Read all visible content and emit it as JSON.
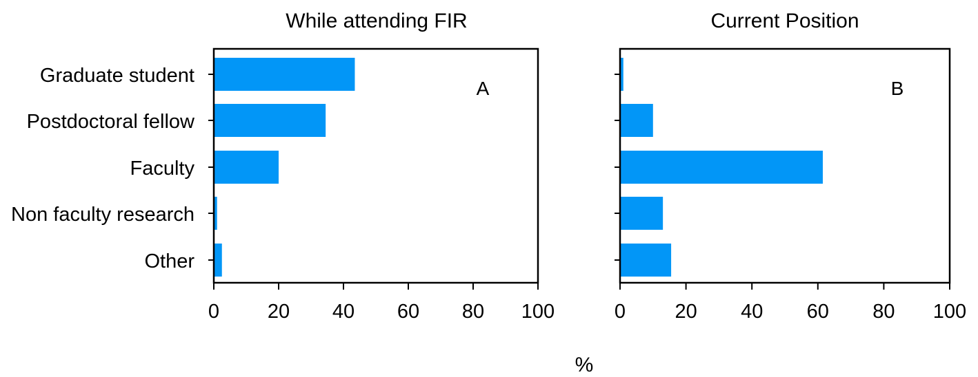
{
  "colors": {
    "bar": "#0296f7"
  },
  "x_unit_label": "%",
  "chart_data": [
    {
      "type": "bar",
      "orientation": "horizontal",
      "title": "While attending FIR",
      "panel_label": "A",
      "categories": [
        "Graduate student",
        "Postdoctoral fellow",
        "Faculty",
        "Non faculty research",
        "Other"
      ],
      "values": [
        43.5,
        34.5,
        20,
        1,
        2.5
      ],
      "xlabel": "%",
      "xlim": [
        0,
        100
      ],
      "xticks": [
        0,
        20,
        40,
        60,
        80,
        100
      ],
      "show_category_labels": true,
      "grid": false
    },
    {
      "type": "bar",
      "orientation": "horizontal",
      "title": "Current Position",
      "panel_label": "B",
      "categories": [
        "Graduate student",
        "Postdoctoral fellow",
        "Faculty",
        "Non faculty research",
        "Other"
      ],
      "values": [
        1,
        10,
        61.5,
        13,
        15.5
      ],
      "xlabel": "%",
      "xlim": [
        0,
        100
      ],
      "xticks": [
        0,
        20,
        40,
        60,
        80,
        100
      ],
      "show_category_labels": false,
      "grid": false
    }
  ]
}
